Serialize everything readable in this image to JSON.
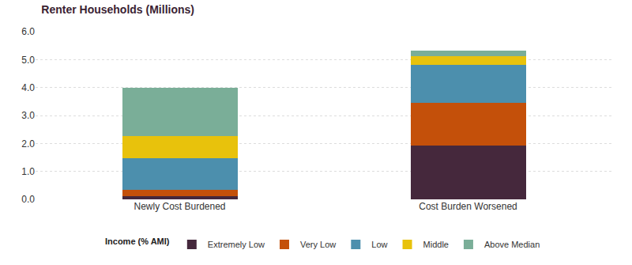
{
  "chart_data": {
    "type": "bar",
    "title": "Renter Households (Millions)",
    "categories": [
      "Newly Cost Burdened",
      "Cost Burden Worsened"
    ],
    "legend_title": "Income (% AMI)",
    "series": [
      {
        "name": "Extremely Low",
        "color": "#45283c",
        "values": [
          0.1,
          1.92
        ]
      },
      {
        "name": "Very Low",
        "color": "#c4500a",
        "values": [
          0.25,
          1.54
        ]
      },
      {
        "name": "Low",
        "color": "#4c8fad",
        "values": [
          1.13,
          1.34
        ]
      },
      {
        "name": "Middle",
        "color": "#e8c20c",
        "values": [
          0.79,
          0.32
        ]
      },
      {
        "name": "Above Median",
        "color": "#7aae98",
        "values": [
          1.73,
          0.2
        ]
      }
    ],
    "ylim": [
      0,
      6
    ],
    "yticks": [
      {
        "value": 0,
        "label": "0.0"
      },
      {
        "value": 1,
        "label": "1.0"
      },
      {
        "value": 2,
        "label": "2.0"
      },
      {
        "value": 3,
        "label": "3.0"
      },
      {
        "value": 4,
        "label": "4.0"
      },
      {
        "value": 5,
        "label": "5.0"
      },
      {
        "value": 6,
        "label": "6.0"
      }
    ],
    "stacked": true,
    "grid": true,
    "legend": "bottom"
  }
}
